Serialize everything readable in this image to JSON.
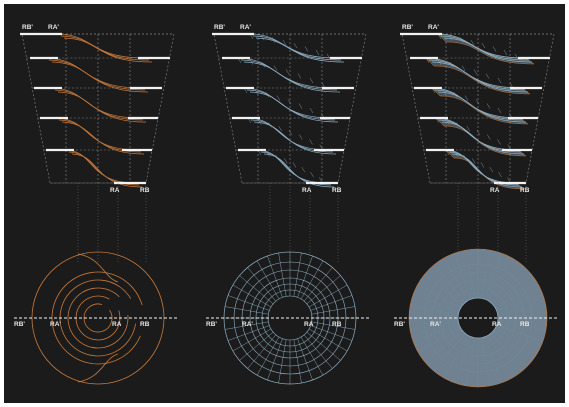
{
  "colors": {
    "background": "#1b1b1b",
    "frame": "#ffffff",
    "guide_dashes": "#8a8a8a",
    "landing_white": "#f2f2f2",
    "structure_orange": "#c8793a",
    "grid_blue": "#8fb0c4",
    "surface_blue": "#7f94a6",
    "shading_teal": "#6c8a9a"
  },
  "panels": [
    {
      "name": "structure",
      "labels": {
        "top_left": "RB'",
        "top_right": "RA'",
        "bottom_left": "RA",
        "bottom_right": "RB"
      },
      "plan_labels": [
        "RB'",
        "RA'",
        "RA",
        "RB"
      ]
    },
    {
      "name": "grid",
      "labels": {
        "top_left": "RB'",
        "top_right": "RA'",
        "bottom_left": "RA",
        "bottom_right": "RB"
      },
      "plan_labels": [
        "RB'",
        "RA'",
        "RA",
        "RB"
      ]
    },
    {
      "name": "surface",
      "labels": {
        "top_left": "RB'",
        "top_right": "RA'",
        "bottom_left": "RA",
        "bottom_right": "RB"
      },
      "plan_labels": [
        "RB'",
        "RA'",
        "RA",
        "RB"
      ]
    }
  ]
}
